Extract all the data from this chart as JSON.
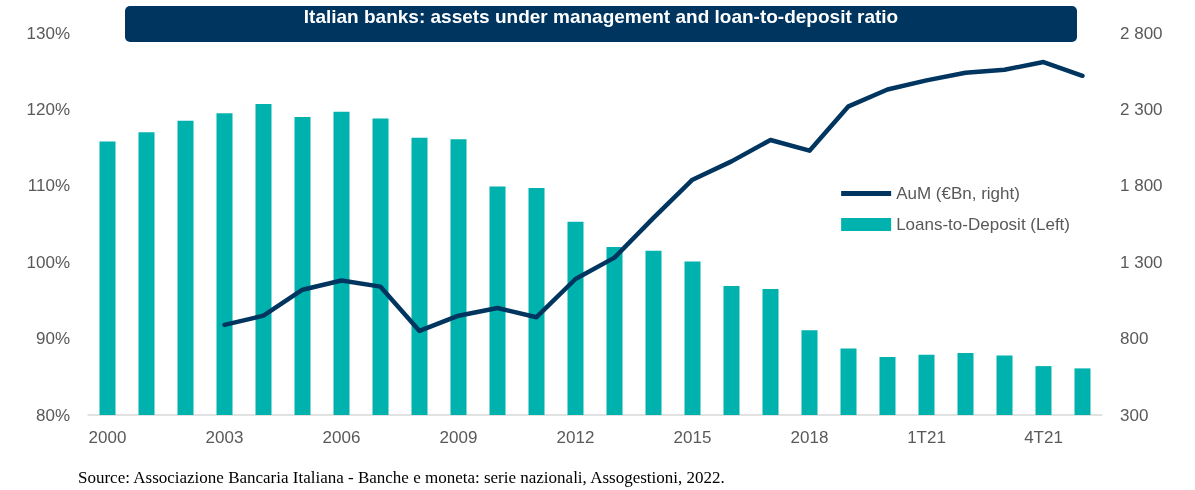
{
  "chart_data": {
    "type": "bar",
    "title": "Italian banks: assets under management and loan-to-deposit ratio",
    "categories": [
      "2000",
      null,
      null,
      "2003",
      null,
      null,
      "2006",
      null,
      null,
      "2009",
      null,
      null,
      "2012",
      null,
      null,
      "2015",
      null,
      null,
      "2018",
      null,
      null,
      "1T21",
      null,
      null,
      "4T21",
      null
    ],
    "series": [
      {
        "name": "Loans-to-Deposit (Left)",
        "color": "#00b2ae",
        "values": [
          115.8,
          117,
          118.5,
          119.5,
          120.7,
          119,
          119.7,
          118.8,
          116.3,
          116.1,
          109.9,
          109.7,
          105.3,
          102,
          101.5,
          100.1,
          96.9,
          96.5,
          91.1,
          88.7,
          87.6,
          87.9,
          88.1,
          87.8,
          86.4,
          86.1
        ]
      },
      {
        "name": "AuM (€Bn, right)",
        "type": "line",
        "axis": "y2",
        "color": "#003560",
        "values": [
          null,
          null,
          null,
          890,
          950,
          1120,
          1180,
          1140,
          850,
          950,
          1000,
          940,
          1190,
          1330,
          1590,
          1840,
          1960,
          2100,
          2030,
          2320,
          2430,
          2490,
          2540,
          2560,
          2610,
          2520
        ]
      }
    ],
    "ylim": [
      80,
      130
    ],
    "yticks": [
      {
        "value": 80,
        "label": "80%"
      },
      {
        "value": 90,
        "label": "90%"
      },
      {
        "value": 100,
        "label": "100%"
      },
      {
        "value": 110,
        "label": "110%"
      },
      {
        "value": 120,
        "label": "120%"
      },
      {
        "value": 130,
        "label": "130%"
      }
    ],
    "y2lim": [
      300,
      2800
    ],
    "y2ticks": [
      {
        "value": 300,
        "label": "300"
      },
      {
        "value": 800,
        "label": "800"
      },
      {
        "value": 1300,
        "label": "1 300"
      },
      {
        "value": 1800,
        "label": "1 800"
      },
      {
        "value": 2300,
        "label": "2 300"
      },
      {
        "value": 2800,
        "label": "2 800"
      }
    ],
    "grid": false,
    "legend": "right",
    "marker": "none",
    "line_style": "solid",
    "annotations": [
      "Source: Associazione Bancaria Italiana - Banche e moneta: serie nazionali, Assogestioni, 2022."
    ]
  }
}
